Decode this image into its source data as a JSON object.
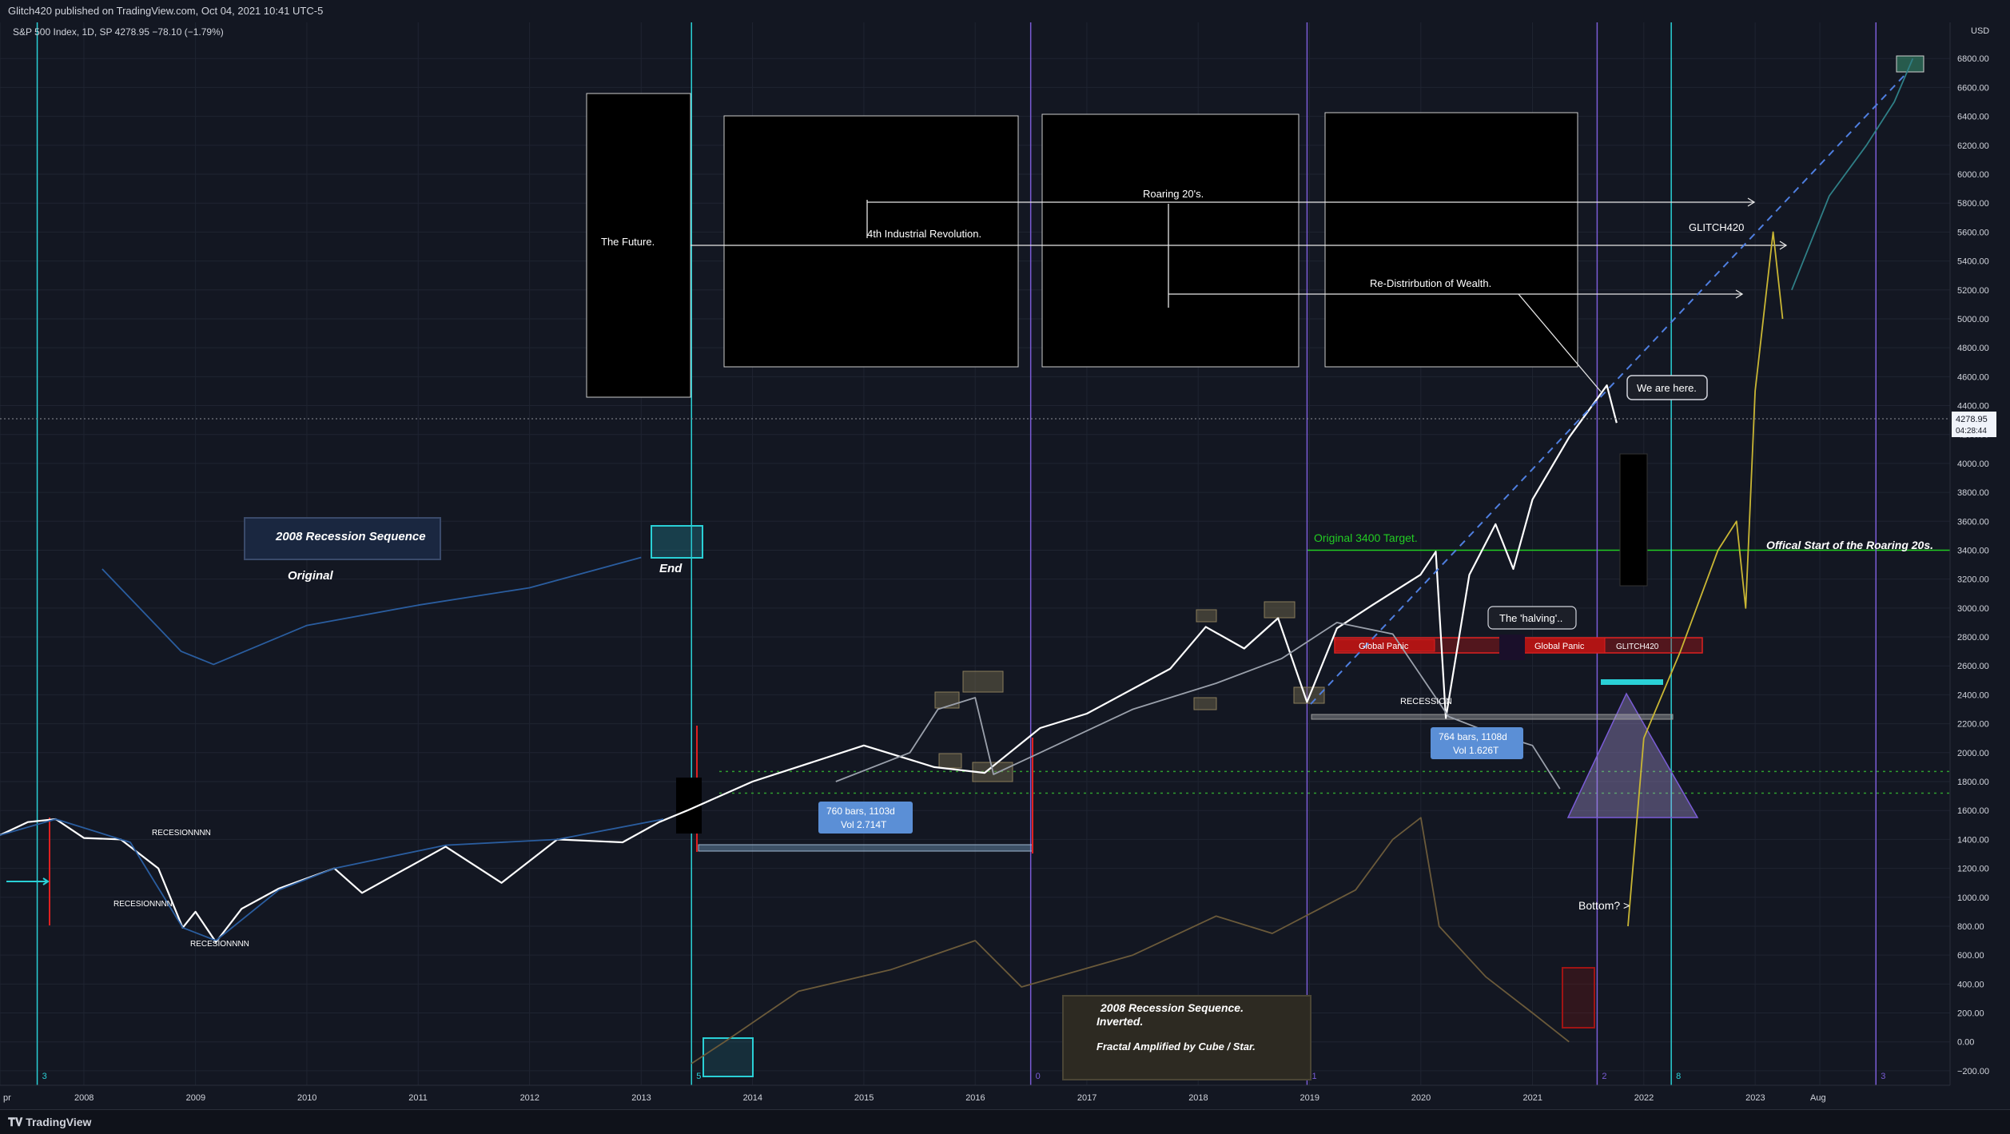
{
  "header": {
    "publisher": "Glitch420 published on TradingView.com, Oct 04, 2021 10:41 UTC-5",
    "symbol_line": "S&P 500 Index, 1D, SP  4278.95  −78.10 (−1.79%)"
  },
  "footer": {
    "brand": "TradingView",
    "logo_glyph": "𝐓𝐕"
  },
  "colors": {
    "background": "#131722",
    "grid": "#1f2431",
    "main_price": "#ffffff",
    "blue_series": "#2a5d9f",
    "gray_series": "#9aa0ab",
    "gold_series": "#6b5a3a",
    "projection_yellow": "#c9b634",
    "projection_teal": "#2f7f86",
    "cyan_line": "#2ad0d6",
    "purple_line": "#7a5cd6",
    "red": "#e02020",
    "green_target": "#22cc22",
    "dash_blue": "#4f7fe0"
  },
  "chart_data": {
    "type": "line",
    "title": "S&P 500 Index, 1D, SP",
    "currency": "USD",
    "last_price": 4278.95,
    "last_price_label": "4278.95",
    "countdown_label": "04:28:44",
    "ylim": [
      -300,
      7050
    ],
    "y_ticks": [
      -200,
      0,
      200,
      400,
      600,
      800,
      1000,
      1200,
      1400,
      1600,
      1800,
      2000,
      2200,
      2400,
      2600,
      2800,
      3000,
      3200,
      3400,
      3600,
      3800,
      4000,
      4200,
      4400,
      4600,
      4800,
      5000,
      5200,
      5400,
      5600,
      5800,
      6000,
      6200,
      6400,
      6600,
      6800
    ],
    "y_tick_labels": [
      "−200.00",
      "0.00",
      "200.00",
      "400.00",
      "600.00",
      "800.00",
      "1000.00",
      "1200.00",
      "1400.00",
      "1600.00",
      "1800.00",
      "2000.00",
      "2200.00",
      "2400.00",
      "2600.00",
      "2800.00",
      "3000.00",
      "3200.00",
      "3400.00",
      "3600.00",
      "3800.00",
      "4000.00",
      "4200.00",
      "4400.00",
      "4600.00",
      "4800.00",
      "5000.00",
      "5200.00",
      "5400.00",
      "5600.00",
      "5800.00",
      "6000.00",
      "6200.00",
      "6400.00",
      "6600.00",
      "6800.00"
    ],
    "x_axis": {
      "range": [
        "2007-04-01",
        "2024-10-01"
      ],
      "ticks": [
        {
          "date": "2007-04-01",
          "label": "pr"
        },
        {
          "date": "2008-01-01",
          "label": "2008"
        },
        {
          "date": "2009-01-01",
          "label": "2009"
        },
        {
          "date": "2010-01-01",
          "label": "2010"
        },
        {
          "date": "2011-01-01",
          "label": "2011"
        },
        {
          "date": "2012-01-01",
          "label": "2012"
        },
        {
          "date": "2013-01-01",
          "label": "2013"
        },
        {
          "date": "2014-01-01",
          "label": "2014"
        },
        {
          "date": "2015-01-01",
          "label": "2015"
        },
        {
          "date": "2016-01-01",
          "label": "2016"
        },
        {
          "date": "2017-01-01",
          "label": "2017"
        },
        {
          "date": "2018-01-01",
          "label": "2018"
        },
        {
          "date": "2019-01-01",
          "label": "2019"
        },
        {
          "date": "2020-01-01",
          "label": "2020"
        },
        {
          "date": "2021-01-01",
          "label": "2021"
        },
        {
          "date": "2022-01-01",
          "label": "2022"
        },
        {
          "date": "2023-01-01",
          "label": "2023"
        },
        {
          "date": "2023-08-01",
          "label": "Aug"
        }
      ]
    },
    "series": [
      {
        "name": "S&P 500 (main)",
        "color": "#ffffff",
        "points": [
          [
            "2007-04-01",
            1430
          ],
          [
            "2007-07-01",
            1520
          ],
          [
            "2007-10-01",
            1540
          ],
          [
            "2008-01-01",
            1410
          ],
          [
            "2008-05-01",
            1400
          ],
          [
            "2008-09-01",
            1200
          ],
          [
            "2008-11-20",
            790
          ],
          [
            "2009-01-01",
            900
          ],
          [
            "2009-03-09",
            690
          ],
          [
            "2009-06-01",
            920
          ],
          [
            "2009-10-01",
            1060
          ],
          [
            "2010-04-01",
            1200
          ],
          [
            "2010-07-01",
            1030
          ],
          [
            "2011-04-01",
            1350
          ],
          [
            "2011-10-01",
            1100
          ],
          [
            "2012-04-01",
            1400
          ],
          [
            "2012-11-01",
            1380
          ],
          [
            "2013-03-01",
            1520
          ],
          [
            "2013-06-01",
            1600
          ],
          [
            "2014-01-01",
            1800
          ],
          [
            "2015-01-01",
            2050
          ],
          [
            "2015-08-20",
            1900
          ],
          [
            "2016-02-01",
            1860
          ],
          [
            "2016-08-01",
            2170
          ],
          [
            "2017-01-01",
            2270
          ],
          [
            "2017-10-01",
            2580
          ],
          [
            "2018-01-26",
            2870
          ],
          [
            "2018-06-01",
            2720
          ],
          [
            "2018-09-20",
            2930
          ],
          [
            "2018-12-24",
            2350
          ],
          [
            "2019-04-01",
            2860
          ],
          [
            "2019-07-26",
            3020
          ],
          [
            "2019-12-31",
            3230
          ],
          [
            "2020-02-19",
            3390
          ],
          [
            "2020-03-23",
            2240
          ],
          [
            "2020-06-08",
            3230
          ],
          [
            "2020-09-02",
            3580
          ],
          [
            "2020-10-30",
            3270
          ],
          [
            "2021-01-01",
            3750
          ],
          [
            "2021-05-01",
            4180
          ],
          [
            "2021-09-02",
            4540
          ],
          [
            "2021-10-04",
            4280
          ]
        ]
      },
      {
        "name": "2008 Recession Sequence (blue)",
        "color": "#2a5d9f",
        "points": [
          [
            "2007-04-01",
            1430
          ],
          [
            "2007-10-01",
            1540
          ],
          [
            "2008-06-01",
            1380
          ],
          [
            "2008-11-20",
            790
          ],
          [
            "2009-03-09",
            700
          ],
          [
            "2009-10-01",
            1050
          ],
          [
            "2010-04-01",
            1200
          ],
          [
            "2011-04-01",
            1360
          ],
          [
            "2012-04-01",
            1400
          ],
          [
            "2013-03-15",
            1540
          ],
          [
            "2008-03-01",
            3270
          ],
          [
            "2008-11-15",
            2700
          ],
          [
            "2009-03-01",
            2610
          ],
          [
            "2010-01-01",
            2880
          ],
          [
            "2011-01-01",
            3020
          ],
          [
            "2012-01-01",
            3140
          ],
          [
            "2013-01-01",
            3350
          ]
        ]
      },
      {
        "name": "Fractal (gray)",
        "color": "#9aa0ab",
        "points": [
          [
            "2014-10-01",
            1800
          ],
          [
            "2015-06-01",
            2000
          ],
          [
            "2015-09-01",
            2300
          ],
          [
            "2016-01-01",
            2380
          ],
          [
            "2016-03-01",
            1850
          ],
          [
            "2016-08-01",
            2000
          ],
          [
            "2017-06-01",
            2300
          ],
          [
            "2018-03-01",
            2480
          ],
          [
            "2018-10-01",
            2650
          ],
          [
            "2019-04-01",
            2900
          ],
          [
            "2019-10-01",
            2820
          ],
          [
            "2020-04-01",
            2250
          ],
          [
            "2020-08-01",
            2150
          ],
          [
            "2021-01-01",
            2050
          ],
          [
            "2021-04-01",
            1750
          ]
        ]
      },
      {
        "name": "2008 Recession Sequence. Inverted (gold)",
        "color": "#6b5a3a",
        "points": [
          [
            "2013-06-15",
            -150
          ],
          [
            "2013-10-01",
            0
          ],
          [
            "2014-06-01",
            350
          ],
          [
            "2015-04-01",
            500
          ],
          [
            "2016-01-01",
            700
          ],
          [
            "2016-06-01",
            380
          ],
          [
            "2017-06-01",
            600
          ],
          [
            "2018-03-01",
            870
          ],
          [
            "2018-09-01",
            750
          ],
          [
            "2019-06-01",
            1050
          ],
          [
            "2019-10-01",
            1400
          ],
          [
            "2020-01-01",
            1550
          ],
          [
            "2020-03-01",
            800
          ],
          [
            "2020-08-01",
            450
          ],
          [
            "2021-01-01",
            200
          ],
          [
            "2021-05-01",
            0
          ]
        ]
      },
      {
        "name": "Projection (yellow)",
        "color": "#c9b634",
        "points": [
          [
            "2021-11-10",
            800
          ],
          [
            "2022-01-01",
            2100
          ],
          [
            "2022-05-01",
            2700
          ],
          [
            "2022-09-01",
            3400
          ],
          [
            "2022-11-01",
            3600
          ],
          [
            "2022-12-01",
            3000
          ],
          [
            "2023-01-01",
            4500
          ],
          [
            "2023-03-01",
            5600
          ],
          [
            "2023-04-01",
            5000
          ]
        ]
      },
      {
        "name": "Projection (teal)",
        "color": "#2f7f86",
        "points": [
          [
            "2023-05-01",
            5200
          ],
          [
            "2023-09-01",
            5850
          ],
          [
            "2024-01-01",
            6200
          ],
          [
            "2024-04-01",
            6500
          ],
          [
            "2024-06-01",
            6800
          ]
        ]
      }
    ],
    "vertical_lines": [
      {
        "date": "2007-08-01",
        "color": "#2ad0d6",
        "label": "3"
      },
      {
        "date": "2013-06-15",
        "color": "#2ad0d6",
        "label": "5"
      },
      {
        "date": "2016-07-01",
        "color": "#7a5cd6",
        "label": "0"
      },
      {
        "date": "2018-12-24",
        "color": "#7a5cd6",
        "label": "1"
      },
      {
        "date": "2021-08-01",
        "color": "#7a5cd6",
        "label": "2"
      },
      {
        "date": "2022-04-01",
        "color": "#2ad0d6",
        "label": "8"
      },
      {
        "date": "2024-02-01",
        "color": "#7a5cd6",
        "label": "3"
      }
    ],
    "horizontal_lines": [
      {
        "name": "original-target",
        "y": 3400,
        "color": "#22cc22"
      },
      {
        "name": "support-dotted-1",
        "y": 1870,
        "color": "#2f9e2f"
      },
      {
        "name": "support-dotted-2",
        "y": 1720,
        "color": "#2f9e2f"
      }
    ],
    "annotations": {
      "future": "The Future.",
      "industrial": "4th Industrial Revolution.",
      "roaring": "Roaring 20's.",
      "redistribution": "Re-Distrirbution of Wealth.",
      "author": "GLITCH420",
      "we_are_here": "We are here.",
      "original_target": "Original 3400 Target.",
      "roaring_start": "Offical Start of the Roaring 20s.",
      "halving": "The 'halving'..",
      "global_panic_1": "Global Panic",
      "global_panic_2": "Global Panic",
      "glitch_small": "GLITCH420",
      "recession": "RECESSION",
      "recession_seq": "2008 Recession Sequence",
      "original": "Original",
      "end": "End",
      "measure1_line1": "760 bars, 1103d",
      "measure1_line2": "Vol 2.714T",
      "measure2_line1": "764 bars, 1108d",
      "measure2_line2": "Vol 1.626T",
      "bottom": "Bottom? >",
      "inverted_line1": "2008 Recession Sequence.",
      "inverted_line2": "Inverted.",
      "fractal": "Fractal Amplified by Cube / Star.",
      "recesion1": "RECESIONNNN",
      "recesion2": "RECESIONNNN",
      "recesion3": "RECESIONNNN"
    }
  }
}
